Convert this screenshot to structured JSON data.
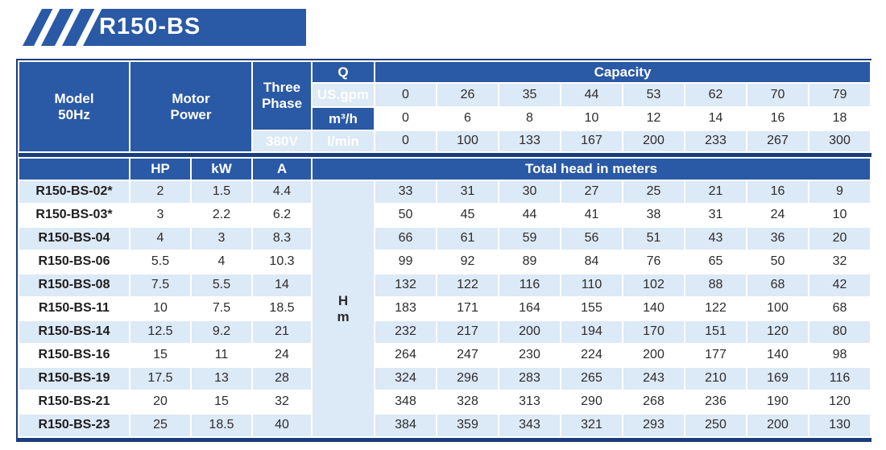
{
  "banner": {
    "title": "R150-BS",
    "color": "#2a59a5"
  },
  "colors": {
    "header_blue": "#2a59a5",
    "border_navy": "#1a3e7c",
    "stripe_light_blue": "#dce9f6",
    "text_dark": "#2e2b2c",
    "text_white": "#ffffff"
  },
  "table": {
    "header": {
      "model_label": "Model",
      "freq_label": "50Hz",
      "motor_label": "Motor",
      "power_label": "Power",
      "three_label": "Three",
      "phase_label": "Phase",
      "voltage": "380V",
      "q_label": "Q",
      "capacity_label": "Capacity",
      "total_head_label": "Total head in meters",
      "sub_headers": [
        "HP",
        "kW",
        "A"
      ],
      "head_unit_lines": [
        "H",
        "m"
      ]
    },
    "capacity_rows": [
      {
        "unit": "US.gpm",
        "values": [
          0,
          26,
          35,
          44,
          53,
          62,
          70,
          79
        ]
      },
      {
        "unit": "m³/h",
        "values": [
          0,
          6,
          8,
          10,
          12,
          14,
          16,
          18
        ]
      },
      {
        "unit": "l/min",
        "values": [
          0,
          100,
          133,
          167,
          200,
          233,
          267,
          300
        ]
      }
    ],
    "rows": [
      {
        "model": "R150-BS-02*",
        "hp": "2",
        "kw": "1.5",
        "a": "4.4",
        "heads": [
          33,
          31,
          30,
          27,
          25,
          21,
          16,
          9
        ]
      },
      {
        "model": "R150-BS-03*",
        "hp": "3",
        "kw": "2.2",
        "a": "6.2",
        "heads": [
          50,
          45,
          44,
          41,
          38,
          31,
          24,
          10
        ]
      },
      {
        "model": "R150-BS-04",
        "hp": "4",
        "kw": "3",
        "a": "8.3",
        "heads": [
          66,
          61,
          59,
          56,
          51,
          43,
          36,
          20
        ]
      },
      {
        "model": "R150-BS-06",
        "hp": "5.5",
        "kw": "4",
        "a": "10.3",
        "heads": [
          99,
          92,
          89,
          84,
          76,
          65,
          50,
          32
        ]
      },
      {
        "model": "R150-BS-08",
        "hp": "7.5",
        "kw": "5.5",
        "a": "14",
        "heads": [
          132,
          122,
          116,
          110,
          102,
          88,
          68,
          42
        ]
      },
      {
        "model": "R150-BS-11",
        "hp": "10",
        "kw": "7.5",
        "a": "18.5",
        "heads": [
          183,
          171,
          164,
          155,
          140,
          122,
          100,
          68
        ]
      },
      {
        "model": "R150-BS-14",
        "hp": "12.5",
        "kw": "9.2",
        "a": "21",
        "heads": [
          232,
          217,
          200,
          194,
          170,
          151,
          120,
          80
        ]
      },
      {
        "model": "R150-BS-16",
        "hp": "15",
        "kw": "11",
        "a": "24",
        "heads": [
          264,
          247,
          230,
          224,
          200,
          177,
          140,
          98
        ]
      },
      {
        "model": "R150-BS-19",
        "hp": "17.5",
        "kw": "13",
        "a": "28",
        "heads": [
          324,
          296,
          283,
          265,
          243,
          210,
          169,
          116
        ]
      },
      {
        "model": "R150-BS-21",
        "hp": "20",
        "kw": "15",
        "a": "32",
        "heads": [
          348,
          328,
          313,
          290,
          268,
          236,
          190,
          120
        ]
      },
      {
        "model": "R150-BS-23",
        "hp": "25",
        "kw": "18.5",
        "a": "40",
        "heads": [
          384,
          359,
          343,
          321,
          293,
          250,
          200,
          130
        ]
      }
    ]
  }
}
